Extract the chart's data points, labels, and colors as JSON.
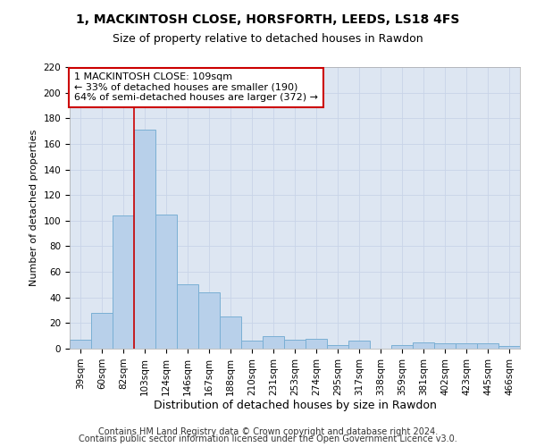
{
  "title_line1": "1, MACKINTOSH CLOSE, HORSFORTH, LEEDS, LS18 4FS",
  "title_line2": "Size of property relative to detached houses in Rawdon",
  "xlabel": "Distribution of detached houses by size in Rawdon",
  "ylabel": "Number of detached properties",
  "categories": [
    "39sqm",
    "60sqm",
    "82sqm",
    "103sqm",
    "124sqm",
    "146sqm",
    "167sqm",
    "188sqm",
    "210sqm",
    "231sqm",
    "253sqm",
    "274sqm",
    "295sqm",
    "317sqm",
    "338sqm",
    "359sqm",
    "381sqm",
    "402sqm",
    "423sqm",
    "445sqm",
    "466sqm"
  ],
  "values": [
    7,
    28,
    104,
    171,
    105,
    50,
    44,
    25,
    6,
    10,
    7,
    8,
    3,
    6,
    0,
    3,
    5,
    4,
    4,
    4,
    2
  ],
  "bar_color": "#b8d0ea",
  "bar_edge_color": "#7aafd4",
  "vline_x_index": 3,
  "vline_color": "#cc0000",
  "annotation_line1": "1 MACKINTOSH CLOSE: 109sqm",
  "annotation_line2": "← 33% of detached houses are smaller (190)",
  "annotation_line3": "64% of semi-detached houses are larger (372) →",
  "annotation_box_facecolor": "#ffffff",
  "annotation_box_edgecolor": "#cc0000",
  "ylim_max": 220,
  "yticks": [
    0,
    20,
    40,
    60,
    80,
    100,
    120,
    140,
    160,
    180,
    200,
    220
  ],
  "grid_color": "#c8d4e8",
  "plot_bg_color": "#dde6f2",
  "title_fontsize": 10,
  "subtitle_fontsize": 9,
  "xlabel_fontsize": 9,
  "ylabel_fontsize": 8,
  "tick_fontsize": 7.5,
  "annotation_fontsize": 8,
  "footer_fontsize": 7,
  "footer_line1": "Contains HM Land Registry data © Crown copyright and database right 2024.",
  "footer_line2": "Contains public sector information licensed under the Open Government Licence v3.0."
}
